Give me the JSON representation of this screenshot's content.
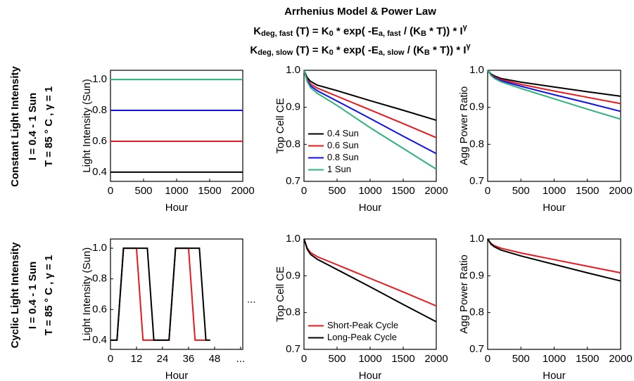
{
  "figure": {
    "title": "Arrhenius Model & Power Law",
    "formulas": [
      [
        {
          "t": "K"
        },
        {
          "sub": "deg, fast"
        },
        {
          "t": " (T) = K"
        },
        {
          "sub": "0"
        },
        {
          "t": " * exp( -E"
        },
        {
          "sub": "a, fast"
        },
        {
          "t": " / (K"
        },
        {
          "sub": "B"
        },
        {
          "t": " * T)) * I"
        },
        {
          "sup": "γ"
        }
      ],
      [
        {
          "t": "K"
        },
        {
          "sub": "deg, slow"
        },
        {
          "t": " (T) = K"
        },
        {
          "sub": "0"
        },
        {
          "t": " * exp( -E"
        },
        {
          "sub": "a, slow"
        },
        {
          "t": " / (K"
        },
        {
          "sub": "B"
        },
        {
          "t": " * T)) * I"
        },
        {
          "sup": "γ"
        }
      ]
    ],
    "row_labels": [
      [
        "Constant Light Intensity",
        "I = 0.4 - 1 Sun",
        "T = 85 ° C , γ = 1"
      ],
      [
        "Cyclic Light Intensity",
        "I = 0.4 - 1 Sun",
        "T = 85 ° C , γ = 1"
      ]
    ]
  },
  "chart_data": [
    {
      "type": "line",
      "xlabel": "Hour",
      "ylabel": "Light Intensity (Sun)",
      "x": [
        0,
        2000
      ],
      "xlim": [
        0,
        2000
      ],
      "xticks": [
        0,
        500,
        1000,
        1500,
        2000
      ],
      "ylim": [
        0.34,
        1.06
      ],
      "yticks": [
        0.4,
        0.6,
        0.8,
        {
          "value": 1,
          "label": "1.0"
        }
      ],
      "series": [
        {
          "color": "#000000",
          "values": [
            0.4,
            0.4
          ]
        },
        {
          "color": "#e8191c",
          "values": [
            0.6,
            0.6
          ]
        },
        {
          "color": "#1010ee",
          "values": [
            0.8,
            0.8
          ]
        },
        {
          "color": "#2fb37a",
          "values": [
            1,
            1
          ]
        }
      ]
    },
    {
      "type": "line",
      "xlabel": "Hour",
      "ylabel": "Top Cell CE",
      "legend": "lower left",
      "x": [
        0,
        50,
        100,
        200,
        500,
        1000,
        1500,
        2000
      ],
      "xlim": [
        0,
        2000
      ],
      "xticks": [
        0,
        500,
        1000,
        1500,
        2000
      ],
      "ylim": [
        0.7,
        1
      ],
      "yticks": [
        0.7,
        0.8,
        0.9,
        {
          "value": 1,
          "label": "1.0"
        }
      ],
      "series": [
        {
          "name": "0.4 Sun",
          "color": "#000000",
          "values": [
            1,
            0.98,
            0.97,
            0.96,
            0.945,
            0.918,
            0.892,
            0.865
          ]
        },
        {
          "name": "0.6 Sun",
          "color": "#e8191c",
          "values": [
            1,
            0.975,
            0.963,
            0.952,
            0.93,
            0.893,
            0.856,
            0.818
          ]
        },
        {
          "name": "0.8 Sun",
          "color": "#1010ee",
          "values": [
            1,
            0.972,
            0.958,
            0.945,
            0.917,
            0.87,
            0.822,
            0.775
          ]
        },
        {
          "name": "1 Sun",
          "color": "#2fb37a",
          "values": [
            1,
            0.969,
            0.953,
            0.938,
            0.905,
            0.845,
            0.789,
            0.733
          ]
        }
      ]
    },
    {
      "type": "line",
      "xlabel": "Hour",
      "ylabel": "Agg Power Ratio",
      "x": [
        0,
        50,
        100,
        200,
        500,
        1000,
        1500,
        2000
      ],
      "xlim": [
        0,
        2000
      ],
      "xticks": [
        0,
        500,
        1000,
        1500,
        2000
      ],
      "ylim": [
        0.7,
        1
      ],
      "yticks": [
        0.7,
        0.8,
        0.9,
        {
          "value": 1,
          "label": "1.0"
        }
      ],
      "series": [
        {
          "color": "#000000",
          "values": [
            1,
            0.99,
            0.985,
            0.978,
            0.968,
            0.955,
            0.942,
            0.93
          ]
        },
        {
          "color": "#e8191c",
          "values": [
            1,
            0.988,
            0.982,
            0.975,
            0.962,
            0.944,
            0.927,
            0.91
          ]
        },
        {
          "color": "#1010ee",
          "values": [
            1,
            0.987,
            0.98,
            0.972,
            0.957,
            0.934,
            0.912,
            0.889
          ]
        },
        {
          "color": "#2fb37a",
          "values": [
            1,
            0.986,
            0.978,
            0.969,
            0.951,
            0.923,
            0.895,
            0.868
          ]
        }
      ]
    },
    {
      "type": "line",
      "xlabel": "Hour",
      "ylabel": "Light Intensity (Sun)",
      "annotation": "...",
      "xlim": [
        0,
        61
      ],
      "xticks": [
        0,
        12,
        24,
        36,
        48,
        {
          "value": 60,
          "label": "..."
        }
      ],
      "ylim": [
        0.34,
        1.06
      ],
      "yticks": [
        0.4,
        0.6,
        0.8,
        {
          "value": 1,
          "label": "1.0"
        }
      ],
      "series": [
        {
          "color": "#e8191c",
          "x": [
            0,
            3,
            6,
            12,
            15,
            27,
            30,
            36,
            39,
            44
          ],
          "values": [
            0.4,
            0.4,
            1,
            1,
            0.4,
            0.4,
            1,
            1,
            0.4,
            0.4
          ]
        },
        {
          "color": "#000000",
          "x": [
            0,
            3,
            6,
            17,
            20,
            27,
            30,
            41,
            44,
            46
          ],
          "values": [
            0.4,
            0.4,
            1,
            1,
            0.4,
            0.4,
            1,
            1,
            0.4,
            0.4
          ]
        }
      ]
    },
    {
      "type": "line",
      "xlabel": "Hour",
      "ylabel": "Top Cell CE",
      "legend": "lower left",
      "x": [
        0,
        50,
        100,
        200,
        500,
        1000,
        1500,
        2000
      ],
      "xlim": [
        0,
        2000
      ],
      "xticks": [
        0,
        500,
        1000,
        1500,
        2000
      ],
      "ylim": [
        0.7,
        1
      ],
      "yticks": [
        0.7,
        0.8,
        0.9,
        {
          "value": 1,
          "label": "1.0"
        }
      ],
      "series": [
        {
          "name": "Short-Peak Cycle",
          "color": "#e8191c",
          "values": [
            1,
            0.975,
            0.963,
            0.952,
            0.93,
            0.893,
            0.856,
            0.818
          ]
        },
        {
          "name": "Long-Peak Cycle",
          "color": "#000000",
          "values": [
            1,
            0.972,
            0.958,
            0.945,
            0.917,
            0.87,
            0.822,
            0.775
          ]
        }
      ]
    },
    {
      "type": "line",
      "xlabel": "Hour",
      "ylabel": "Agg Power Ratio",
      "x": [
        0,
        50,
        100,
        200,
        500,
        1000,
        1500,
        2000
      ],
      "xlim": [
        0,
        2000
      ],
      "xticks": [
        0,
        500,
        1000,
        1500,
        2000
      ],
      "ylim": [
        0.7,
        1
      ],
      "yticks": [
        0.7,
        0.8,
        0.9,
        {
          "value": 1,
          "label": "1.0"
        }
      ],
      "series": [
        {
          "color": "#e8191c",
          "values": [
            1,
            0.988,
            0.982,
            0.975,
            0.962,
            0.944,
            0.926,
            0.908
          ]
        },
        {
          "color": "#000000",
          "values": [
            1,
            0.986,
            0.979,
            0.97,
            0.954,
            0.931,
            0.908,
            0.886
          ]
        }
      ]
    }
  ]
}
